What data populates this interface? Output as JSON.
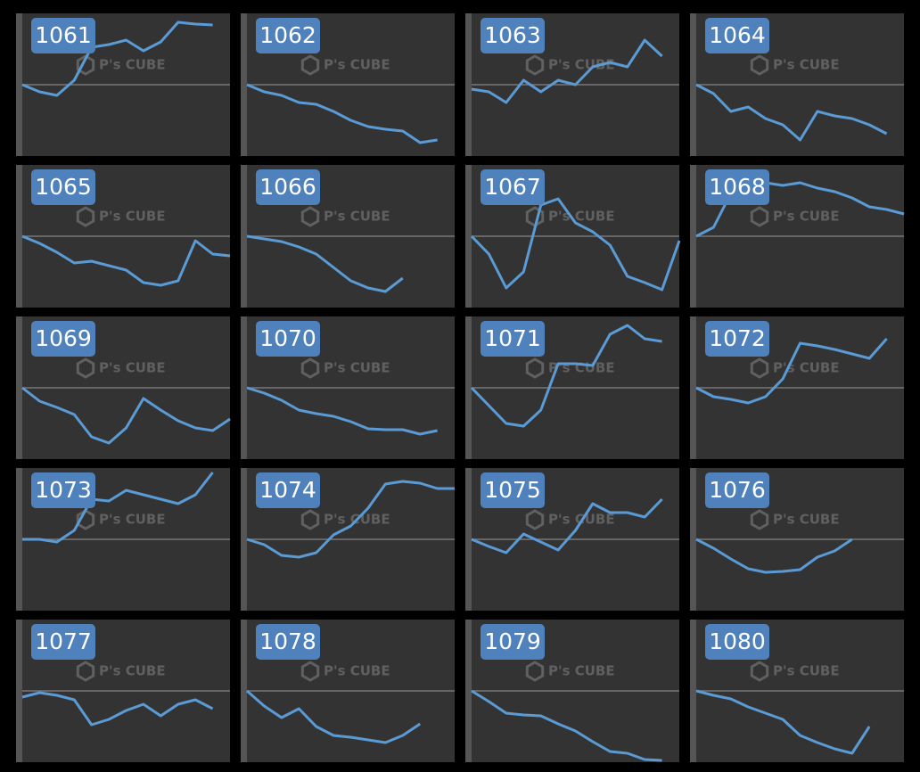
{
  "watermark": "P's CUBE",
  "chart_data": [
    {
      "type": "line",
      "title": "1061",
      "color": "#5b9bd5",
      "xlim": [
        0,
        12
      ],
      "ylim": [
        -80,
        80
      ],
      "baseline": 0,
      "values": [
        0,
        -8,
        -12,
        5,
        42,
        45,
        50,
        38,
        48,
        70,
        68,
        67
      ]
    },
    {
      "type": "line",
      "title": "1062",
      "color": "#5b9bd5",
      "xlim": [
        0,
        12
      ],
      "ylim": [
        -80,
        80
      ],
      "baseline": 0,
      "values": [
        0,
        -8,
        -12,
        -20,
        -22,
        -30,
        -40,
        -47,
        -50,
        -52,
        -65,
        -62
      ]
    },
    {
      "type": "line",
      "title": "1063",
      "color": "#5b9bd5",
      "xlim": [
        0,
        12
      ],
      "ylim": [
        -80,
        80
      ],
      "baseline": 0,
      "values": [
        -5,
        -8,
        -20,
        5,
        -8,
        5,
        0,
        20,
        25,
        20,
        50,
        32
      ]
    },
    {
      "type": "line",
      "title": "1064",
      "color": "#5b9bd5",
      "xlim": [
        0,
        12
      ],
      "ylim": [
        -80,
        80
      ],
      "baseline": 0,
      "values": [
        0,
        -10,
        -30,
        -25,
        -38,
        -45,
        -62,
        -30,
        -35,
        -38,
        -45,
        -55
      ]
    },
    {
      "type": "line",
      "title": "1065",
      "color": "#5b9bd5",
      "xlim": [
        0,
        12
      ],
      "ylim": [
        -80,
        80
      ],
      "baseline": 0,
      "values": [
        0,
        -8,
        -18,
        -30,
        -28,
        -33,
        -38,
        -52,
        -55,
        -50,
        -5,
        -20,
        -22
      ]
    },
    {
      "type": "line",
      "title": "1066",
      "color": "#5b9bd5",
      "xlim": [
        0,
        12
      ],
      "ylim": [
        -80,
        80
      ],
      "baseline": 0,
      "values": [
        0,
        -3,
        -6,
        -12,
        -20,
        -35,
        -50,
        -58,
        -62,
        -47
      ]
    },
    {
      "type": "line",
      "title": "1067",
      "color": "#5b9bd5",
      "xlim": [
        0,
        12
      ],
      "ylim": [
        -80,
        80
      ],
      "baseline": 0,
      "values": [
        0,
        -20,
        -58,
        -40,
        35,
        42,
        15,
        5,
        -10,
        -45,
        -52,
        -60,
        -5
      ]
    },
    {
      "type": "line",
      "title": "1068",
      "color": "#5b9bd5",
      "xlim": [
        0,
        12
      ],
      "ylim": [
        -80,
        80
      ],
      "baseline": 0,
      "values": [
        0,
        10,
        48,
        65,
        60,
        57,
        60,
        54,
        50,
        43,
        33,
        30,
        25
      ]
    },
    {
      "type": "line",
      "title": "1069",
      "color": "#5b9bd5",
      "xlim": [
        0,
        12
      ],
      "ylim": [
        -80,
        80
      ],
      "baseline": 0,
      "values": [
        0,
        -15,
        -22,
        -30,
        -55,
        -62,
        -45,
        -12,
        -25,
        -37,
        -45,
        -48,
        -35
      ]
    },
    {
      "type": "line",
      "title": "1070",
      "color": "#5b9bd5",
      "xlim": [
        0,
        12
      ],
      "ylim": [
        -80,
        80
      ],
      "baseline": 0,
      "values": [
        0,
        -6,
        -14,
        -25,
        -29,
        -32,
        -38,
        -46,
        -47,
        -47,
        -52,
        -48
      ]
    },
    {
      "type": "line",
      "title": "1071",
      "color": "#5b9bd5",
      "xlim": [
        0,
        12
      ],
      "ylim": [
        -80,
        80
      ],
      "baseline": 0,
      "values": [
        0,
        -20,
        -40,
        -43,
        -25,
        27,
        27,
        25,
        60,
        70,
        55,
        52
      ]
    },
    {
      "type": "line",
      "title": "1072",
      "color": "#5b9bd5",
      "xlim": [
        0,
        12
      ],
      "ylim": [
        -80,
        80
      ],
      "baseline": 0,
      "values": [
        0,
        -10,
        -13,
        -17,
        -10,
        10,
        50,
        47,
        43,
        38,
        33,
        55
      ]
    },
    {
      "type": "line",
      "title": "1073",
      "color": "#5b9bd5",
      "xlim": [
        0,
        12
      ],
      "ylim": [
        -80,
        80
      ],
      "baseline": 0,
      "values": [
        0,
        0,
        -3,
        10,
        45,
        43,
        55,
        50,
        45,
        40,
        50,
        75
      ]
    },
    {
      "type": "line",
      "title": "1074",
      "color": "#5b9bd5",
      "xlim": [
        0,
        12
      ],
      "ylim": [
        -80,
        80
      ],
      "baseline": 0,
      "values": [
        0,
        -6,
        -18,
        -20,
        -15,
        5,
        15,
        35,
        62,
        65,
        63,
        57,
        57
      ]
    },
    {
      "type": "line",
      "title": "1075",
      "color": "#5b9bd5",
      "xlim": [
        0,
        12
      ],
      "ylim": [
        -80,
        80
      ],
      "baseline": 0,
      "values": [
        0,
        -8,
        -15,
        6,
        -3,
        -12,
        10,
        40,
        30,
        30,
        25,
        45
      ]
    },
    {
      "type": "line",
      "title": "1076",
      "color": "#5b9bd5",
      "xlim": [
        0,
        12
      ],
      "ylim": [
        -80,
        80
      ],
      "baseline": 0,
      "values": [
        0,
        -10,
        -22,
        -33,
        -37,
        -36,
        -34,
        -20,
        -13,
        0
      ]
    },
    {
      "type": "line",
      "title": "1077",
      "color": "#5b9bd5",
      "xlim": [
        0,
        12
      ],
      "ylim": [
        -80,
        80
      ],
      "baseline": 0,
      "values": [
        -7,
        -2,
        -5,
        -10,
        -38,
        -32,
        -22,
        -15,
        -28,
        -15,
        -10,
        -20
      ]
    },
    {
      "type": "line",
      "title": "1078",
      "color": "#5b9bd5",
      "xlim": [
        0,
        12
      ],
      "ylim": [
        -80,
        80
      ],
      "baseline": 0,
      "values": [
        0,
        -17,
        -30,
        -20,
        -40,
        -50,
        -52,
        -55,
        -58,
        -50,
        -37
      ]
    },
    {
      "type": "line",
      "title": "1079",
      "color": "#5b9bd5",
      "xlim": [
        0,
        12
      ],
      "ylim": [
        -80,
        80
      ],
      "baseline": 0,
      "values": [
        0,
        -12,
        -25,
        -27,
        -28,
        -37,
        -45,
        -57,
        -68,
        -70,
        -77,
        -78
      ]
    },
    {
      "type": "line",
      "title": "1080",
      "color": "#5b9bd5",
      "xlim": [
        0,
        12
      ],
      "ylim": [
        -80,
        80
      ],
      "baseline": 0,
      "values": [
        0,
        -5,
        -9,
        -18,
        -25,
        -32,
        -50,
        -58,
        -65,
        -70,
        -40
      ]
    }
  ]
}
